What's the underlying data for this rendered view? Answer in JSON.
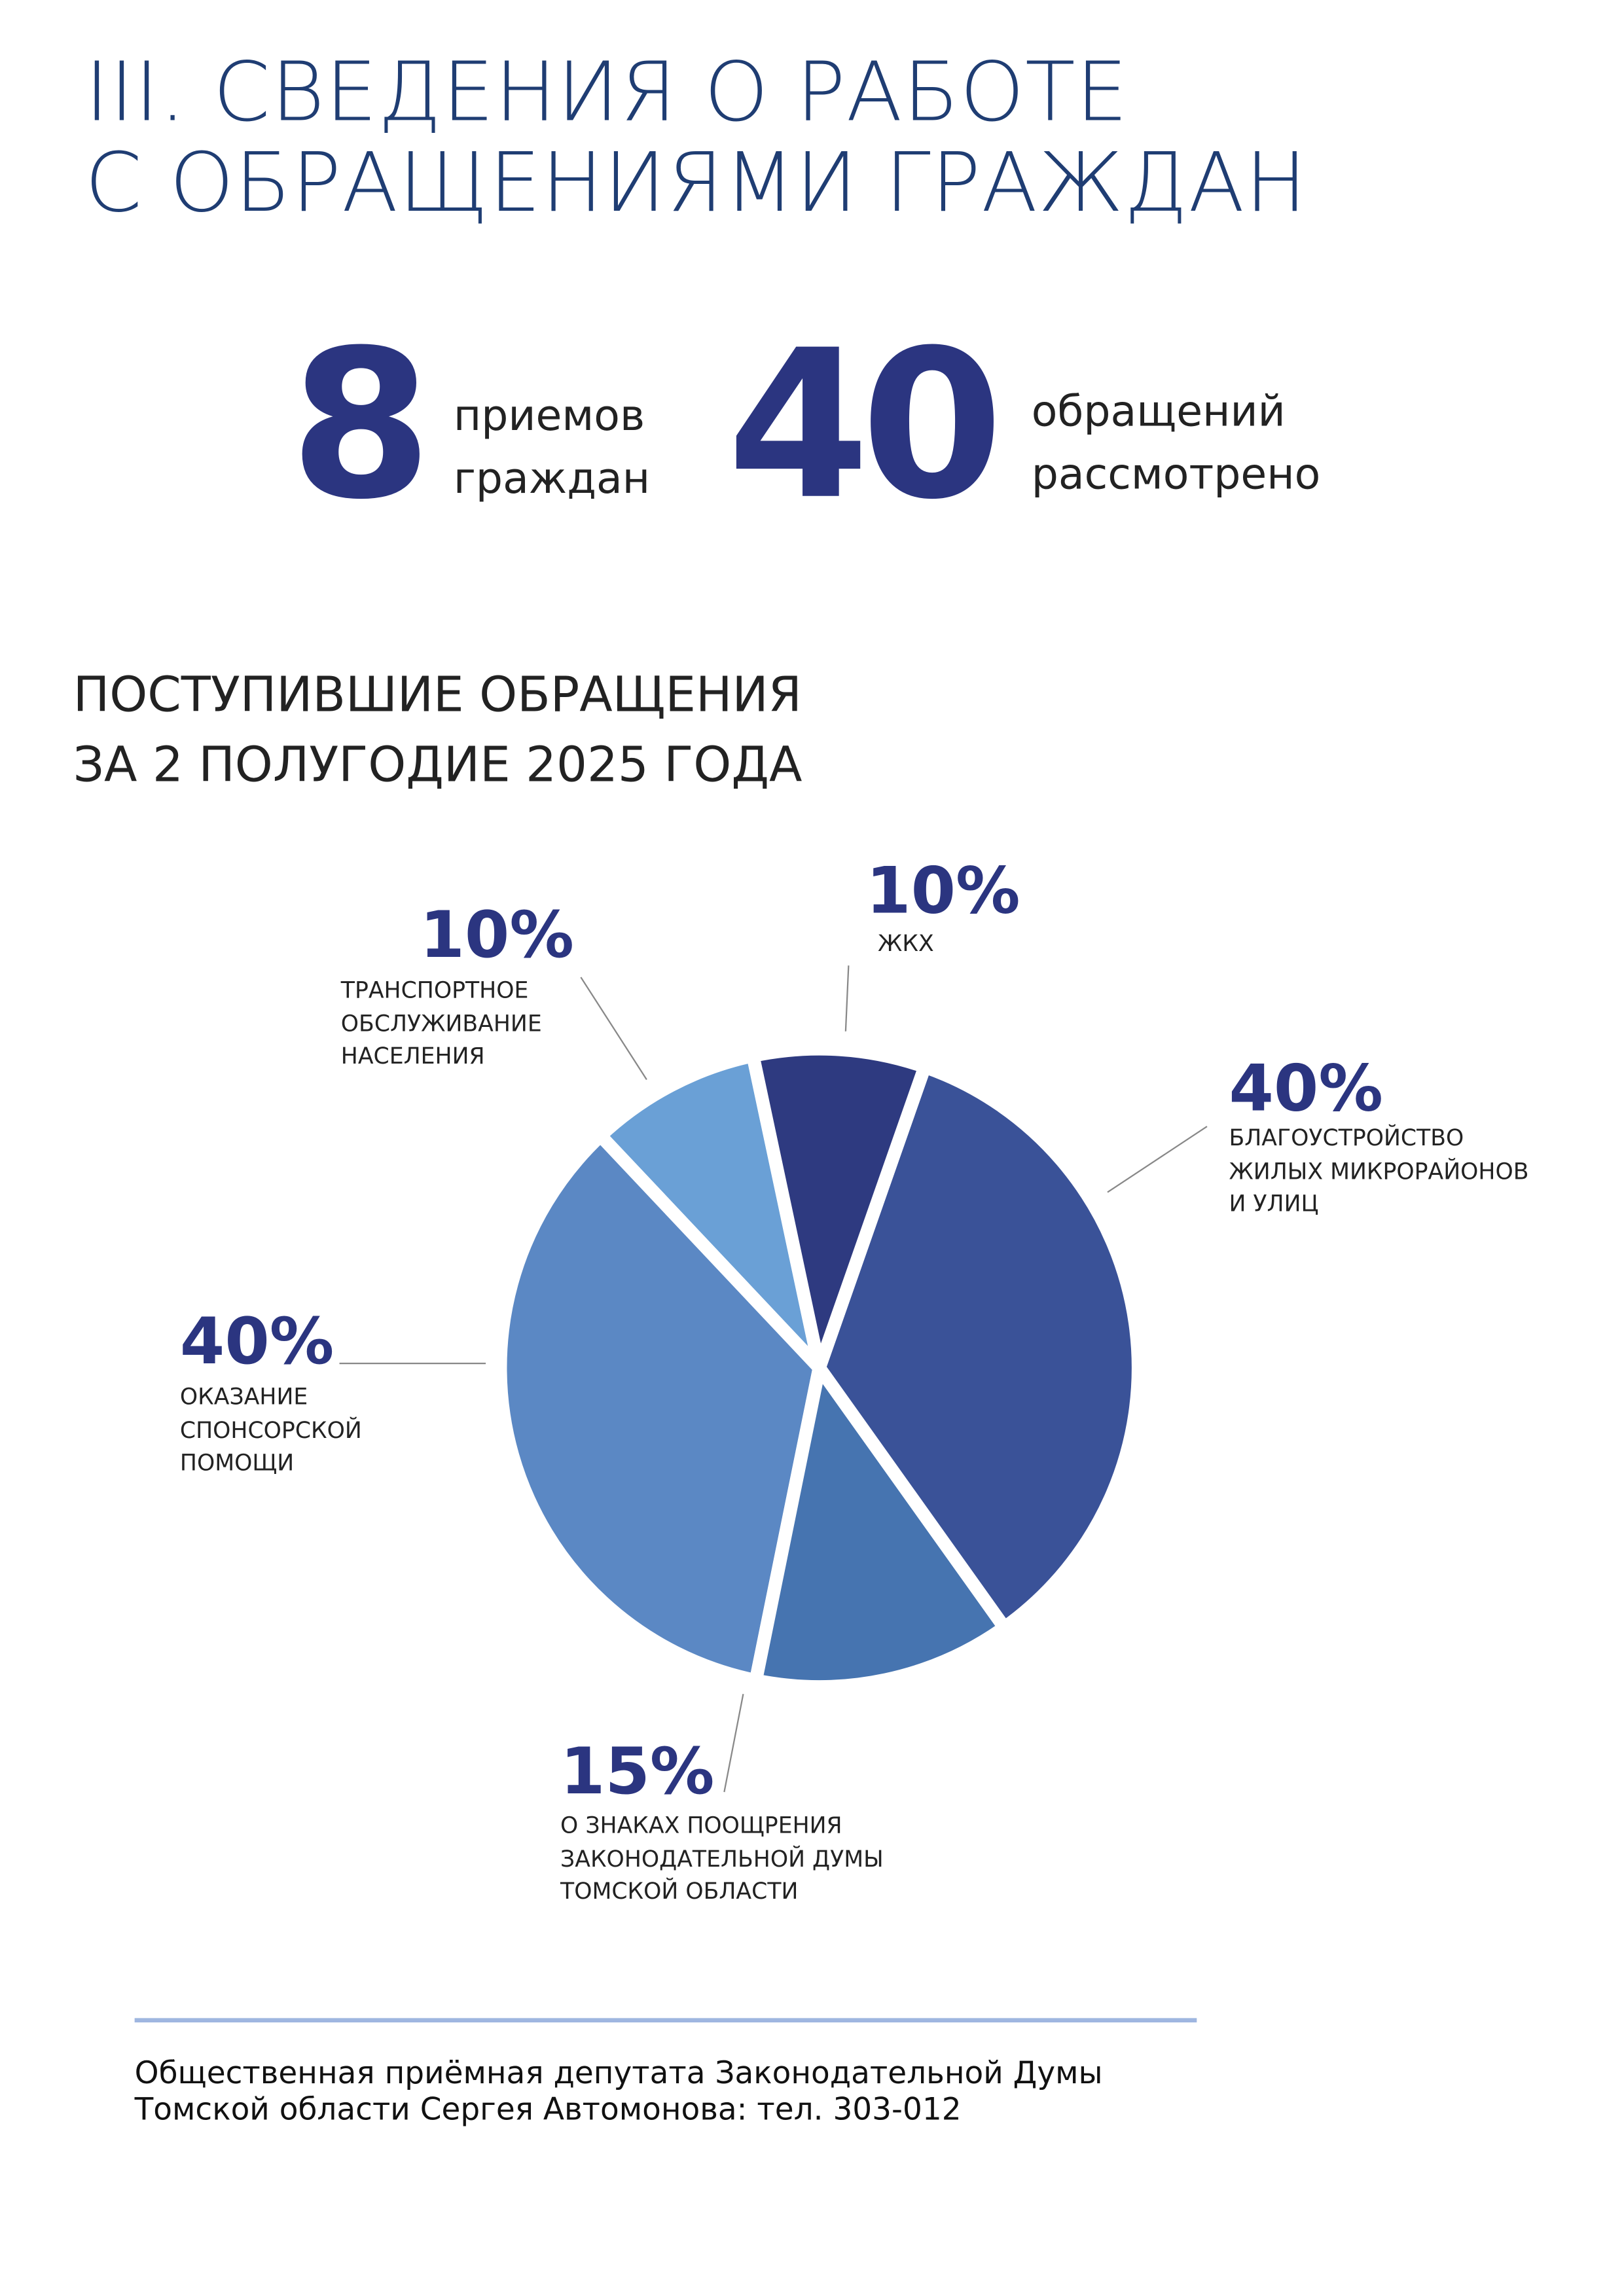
{
  "header": {
    "title_lines": [
      "III. СВЕДЕНИЯ О РАБОТЕ",
      "С ОБРАЩЕНИЯМИ ГРАЖДАН"
    ]
  },
  "stats": [
    {
      "value": 8,
      "label": "приемов\nграждан"
    },
    {
      "value": 40,
      "label": "обращений\nрассмотрено"
    }
  ],
  "chart_data": {
    "type": "pie",
    "title_lines": [
      "ПОСТУПИВШИЕ ОБРАЩЕНИЯ",
      "ЗА 2 ПОЛУГОДИЕ 2025 ГОДА"
    ],
    "categories": [
      "ЖКХ",
      "БЛАГОУСТРОЙСТВО\nЖИЛЫХ МИКРОРАЙОНОВ\nИ УЛИЦ",
      "О ЗНАКАХ ПООЩРЕНИЯ\nЗАКОНОДАТЕЛЬНОЙ ДУМЫ\nТОМСКОЙ ОБЛАСТИ",
      "ОКАЗАНИЕ\nСПОНСОРСКОЙ\nПОМОЩИ",
      "ТРАНСПОРТНОЕ\nОБСЛУЖИВАНИЕ\nНАСЕЛЕНИЯ"
    ],
    "values": [
      10,
      40,
      15,
      40,
      10
    ],
    "value_labels": [
      "10%",
      "40%",
      "15%",
      "40%",
      "10%"
    ],
    "colors": [
      "#2e3a80",
      "#3a5298",
      "#4674b0",
      "#5b88c4",
      "#6aa0d6"
    ]
  },
  "footer": {
    "lines": [
      "Общественная приёмная депутата Законодательной Думы",
      "Томской области Сергея Автомонова: тел. 303-012"
    ]
  }
}
